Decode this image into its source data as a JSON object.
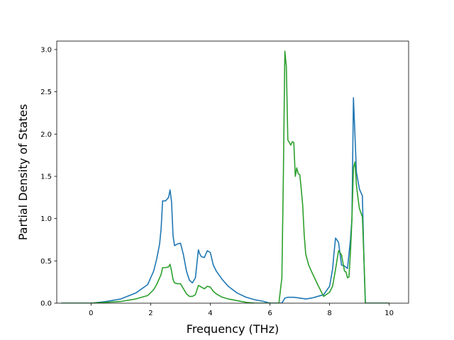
{
  "chart_data": {
    "type": "line",
    "title": "",
    "xlabel": "Frequency (THz)",
    "ylabel": "Partial Density of States",
    "xlim": [
      -1.15,
      10.65
    ],
    "ylim": [
      0,
      3.1
    ],
    "xticks": [
      0,
      2,
      4,
      6,
      8,
      10
    ],
    "xtick_labels": [
      "0",
      "2",
      "4",
      "6",
      "8",
      "10"
    ],
    "yticks": [
      0.0,
      0.5,
      1.0,
      1.5,
      2.0,
      2.5,
      3.0
    ],
    "ytick_labels": [
      "0.0",
      "0.5",
      "1.0",
      "1.5",
      "2.0",
      "2.5",
      "3.0"
    ],
    "grid": false,
    "legend": "none",
    "series": [
      {
        "color": "#1f77b4",
        "x": [
          -1.0,
          0.0,
          0.5,
          1.0,
          1.5,
          1.9,
          2.1,
          2.2,
          2.3,
          2.35,
          2.4,
          2.5,
          2.6,
          2.65,
          2.7,
          2.75,
          2.8,
          2.9,
          3.0,
          3.1,
          3.2,
          3.3,
          3.4,
          3.5,
          3.6,
          3.65,
          3.7,
          3.8,
          3.9,
          4.0,
          4.1,
          4.2,
          4.4,
          4.6,
          4.9,
          5.2,
          5.5,
          5.8,
          6.0,
          6.1,
          6.3,
          6.4,
          6.5,
          6.6,
          6.8,
          7.0,
          7.2,
          7.4,
          7.6,
          7.8,
          8.0,
          8.1,
          8.15,
          8.2,
          8.3,
          8.4,
          8.5,
          8.6,
          8.7,
          8.75,
          8.8,
          8.85,
          8.9,
          9.0,
          9.1,
          9.15,
          9.2,
          9.3,
          10.0
        ],
        "y": [
          0.0,
          0.0,
          0.02,
          0.05,
          0.12,
          0.22,
          0.38,
          0.52,
          0.7,
          0.88,
          1.21,
          1.21,
          1.25,
          1.34,
          1.2,
          0.8,
          0.68,
          0.7,
          0.71,
          0.57,
          0.38,
          0.27,
          0.24,
          0.3,
          0.63,
          0.58,
          0.55,
          0.54,
          0.62,
          0.6,
          0.45,
          0.38,
          0.28,
          0.2,
          0.12,
          0.07,
          0.04,
          0.02,
          0.0,
          0.0,
          0.0,
          0.0,
          0.06,
          0.07,
          0.07,
          0.06,
          0.05,
          0.06,
          0.08,
          0.1,
          0.2,
          0.4,
          0.6,
          0.77,
          0.72,
          0.45,
          0.44,
          0.41,
          0.75,
          1.0,
          2.43,
          2.0,
          1.55,
          1.35,
          1.27,
          0.55,
          0.0,
          0.0,
          0.0
        ]
      },
      {
        "color": "#2ca02c",
        "x": [
          -1.0,
          0.0,
          0.5,
          1.0,
          1.5,
          1.9,
          2.1,
          2.2,
          2.3,
          2.35,
          2.4,
          2.5,
          2.6,
          2.65,
          2.7,
          2.75,
          2.8,
          2.9,
          3.0,
          3.1,
          3.2,
          3.3,
          3.4,
          3.5,
          3.6,
          3.65,
          3.7,
          3.8,
          3.9,
          4.0,
          4.1,
          4.2,
          4.4,
          4.6,
          4.9,
          5.2,
          5.5,
          5.8,
          6.0,
          6.1,
          6.3,
          6.4,
          6.45,
          6.5,
          6.55,
          6.6,
          6.7,
          6.75,
          6.8,
          6.85,
          6.9,
          6.95,
          7.0,
          7.05,
          7.1,
          7.15,
          7.2,
          7.3,
          7.4,
          7.6,
          7.8,
          8.0,
          8.1,
          8.2,
          8.3,
          8.35,
          8.4,
          8.5,
          8.55,
          8.6,
          8.65,
          8.7,
          8.75,
          8.8,
          8.85,
          8.9,
          8.95,
          9.0,
          9.1,
          9.15,
          9.2,
          9.3,
          10.0
        ],
        "y": [
          0.0,
          0.0,
          0.01,
          0.02,
          0.05,
          0.09,
          0.16,
          0.22,
          0.3,
          0.34,
          0.42,
          0.42,
          0.43,
          0.46,
          0.38,
          0.28,
          0.24,
          0.23,
          0.23,
          0.17,
          0.11,
          0.08,
          0.08,
          0.1,
          0.21,
          0.2,
          0.19,
          0.17,
          0.2,
          0.19,
          0.14,
          0.11,
          0.07,
          0.05,
          0.03,
          0.01,
          0.0,
          0.0,
          0.0,
          0.0,
          0.0,
          0.3,
          1.5,
          2.98,
          2.8,
          1.93,
          1.87,
          1.91,
          1.9,
          1.5,
          1.6,
          1.53,
          1.52,
          1.35,
          1.15,
          0.8,
          0.58,
          0.45,
          0.37,
          0.22,
          0.08,
          0.13,
          0.2,
          0.4,
          0.62,
          0.6,
          0.57,
          0.38,
          0.37,
          0.3,
          0.31,
          0.6,
          1.0,
          1.6,
          1.67,
          1.4,
          1.25,
          1.12,
          1.02,
          0.55,
          0.0,
          0.0,
          0.0
        ]
      }
    ]
  }
}
